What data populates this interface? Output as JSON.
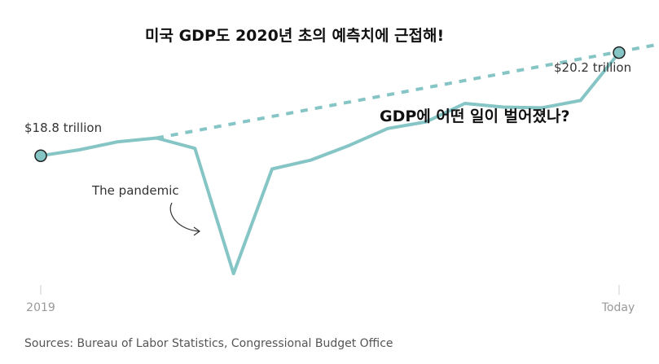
{
  "chart_data": {
    "type": "line",
    "title": "미국 GDP도 2020년 초의 예측치에 근접해!",
    "subtitle": "GDP에 어떤 일이 벌어졌나?",
    "xlabel": "",
    "ylabel": "",
    "x_tick_labels": [
      "2019",
      "Today"
    ],
    "start_label": "$18.8 trillion",
    "end_label": "$20.2 trillion",
    "annotation": "The pandemic",
    "ylim": [
      17.1,
      20.45
    ],
    "grid": false,
    "series": [
      {
        "name": "",
        "style": "solid",
        "color": "#86c5c5",
        "x": [
          0,
          1,
          2,
          3,
          4,
          5,
          6,
          7,
          8,
          9,
          10,
          11,
          12,
          13,
          14,
          15
        ],
        "values": [
          18.8,
          18.88,
          18.99,
          19.04,
          18.9,
          17.2,
          18.62,
          18.74,
          18.94,
          19.17,
          19.26,
          19.51,
          19.46,
          19.45,
          19.55,
          20.2
        ]
      },
      {
        "name": "",
        "style": "dashed",
        "color": "#86c5c5",
        "x": [
          3,
          16
        ],
        "values": [
          19.04,
          20.31
        ]
      }
    ]
  },
  "source_text": "Sources: Bureau of Labor Statistics, Congressional Budget Office",
  "colors": {
    "line": "#86c5c5",
    "marker": "#86c5c5",
    "marker_stroke": "#222222",
    "axis": "#cccccc"
  }
}
